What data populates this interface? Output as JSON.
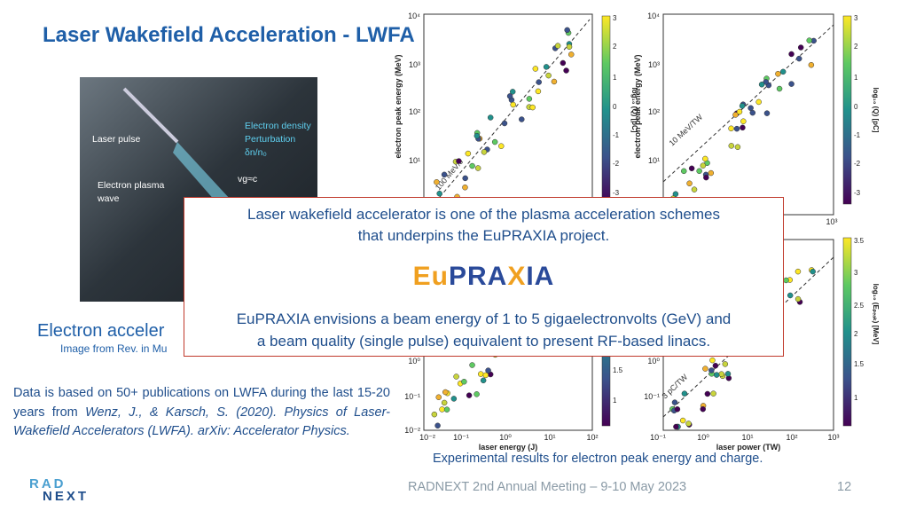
{
  "header": {
    "title": "Laser Wakefield Acceleration - LWFA"
  },
  "photo": {
    "labels": [
      "Laser pulse",
      "Electron density",
      "Perturbation",
      "δn/n₀",
      "Electron plasma",
      "wave",
      "vg≈c"
    ]
  },
  "caption": {
    "title": "Electron acceler",
    "source": "Image from Rev. in Mu"
  },
  "description": {
    "text": "Data is based on 50+ publications on LWFA during the last 15-20 years from",
    "citation": "Wenz, J., & Karsch, S. (2020). Physics of Laser-Wakefield Accelerators (LWFA). arXiv: Accelerator Physics."
  },
  "plots": [
    {
      "ylabel": "electron peak energy (MeV)",
      "yticks": [
        "10⁴",
        "10³",
        "10²",
        "10¹"
      ],
      "xticks": [],
      "line_label": "100 MeV/J",
      "colorbar_label": "log₁₀ (Q) [pC]",
      "colorbar_ticks": [
        "3",
        "2",
        "1",
        "0",
        "-1",
        "-2",
        "-3"
      ]
    },
    {
      "ylabel": "electron peak energy (MeV)",
      "yticks": [
        "10⁴",
        "10³",
        "10²",
        "10¹"
      ],
      "xticks": [
        "10³"
      ],
      "line_label": "10 MeV/TW",
      "colorbar_label": "log₁₀ (Q) [pC]",
      "colorbar_ticks": [
        "3",
        "2",
        "1",
        "0",
        "-1",
        "-2",
        "-3"
      ]
    },
    {
      "yticks": [
        "10⁰",
        "10⁻¹",
        "10⁻²"
      ],
      "xticks": [
        "10⁻²",
        "10⁻¹",
        "10⁰",
        "10¹",
        "10²"
      ],
      "xlabel": "laser energy (J)",
      "colorbar_ticks": [
        "1.5",
        "1"
      ]
    },
    {
      "yticks": [
        "10⁰",
        "10⁻¹"
      ],
      "xticks": [
        "10⁻¹",
        "10⁰",
        "10¹",
        "10²",
        "10³"
      ],
      "xlabel": "laser power (TW)",
      "line_label": "3 pC/TW",
      "colorbar_label": "log₁₀ (Eₚₑₐₖ) [MeV]",
      "colorbar_ticks": [
        "3.5",
        "3",
        "2.5",
        "2",
        "1.5",
        "1"
      ]
    }
  ],
  "figure_caption": "Experimental results for electron peak energy and charge.",
  "popup": {
    "line1": "Laser wakefield accelerator is one of the plasma acceleration schemes",
    "line2": "that underpins the EuPRAXIA project.",
    "logo": [
      "Eu",
      "PRA",
      "X",
      "IA"
    ],
    "line3": "EuPRAXIA envisions a beam energy of 1 to 5 gigaelectronvolts (GeV) and",
    "line4": "a beam quality (single pulse) equivalent to present RF-based linacs."
  },
  "footer": {
    "meeting": "RADNEXT 2nd Annual Meeting – 9-10 May 2023",
    "page": "12",
    "logo": [
      "RAD",
      "NEXT"
    ]
  }
}
